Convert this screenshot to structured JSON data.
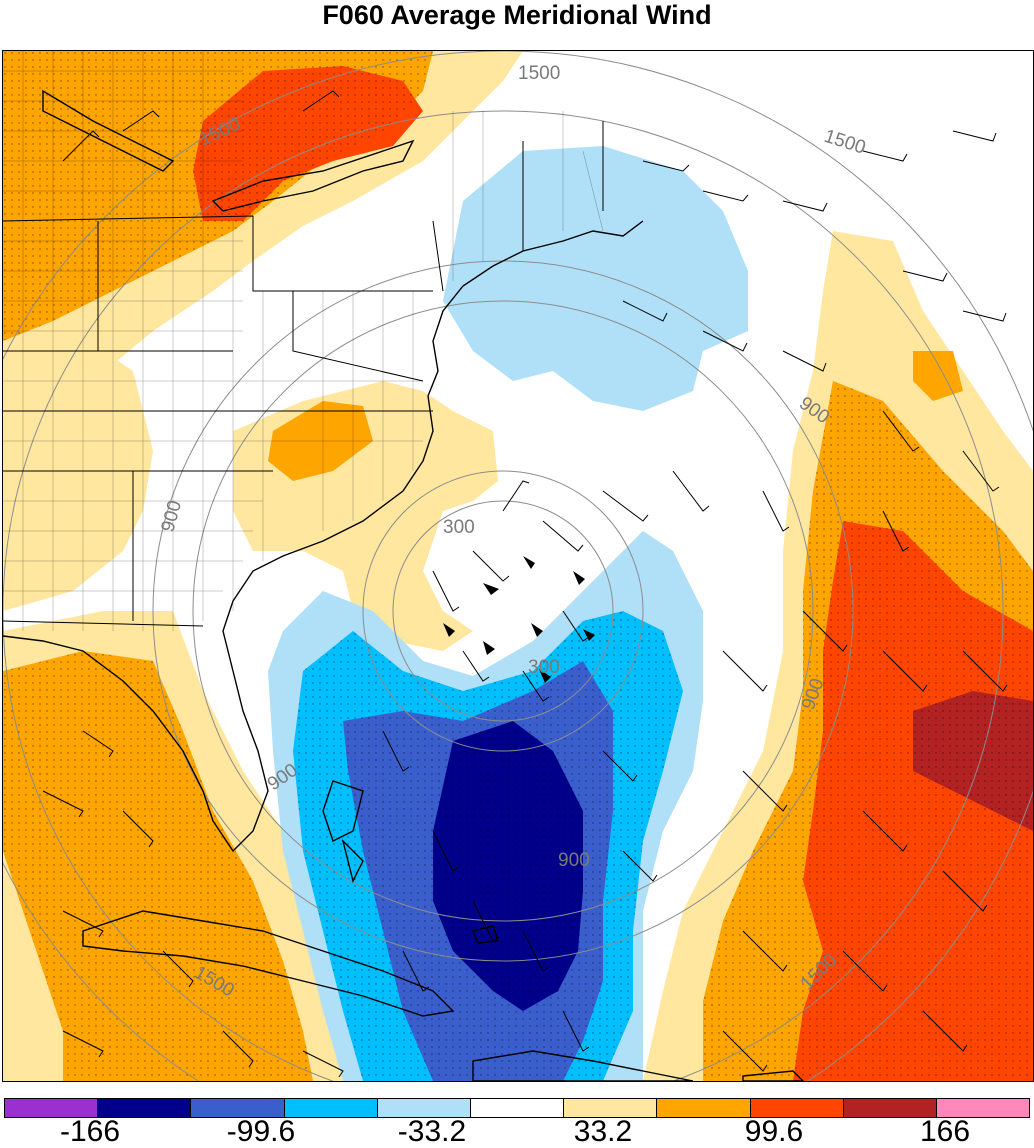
{
  "title": "F060 Average Meridional Wind",
  "contour_labels": {
    "c300a": "300",
    "c300b": "300",
    "c900a": "900",
    "c900b": "900",
    "c900c": "900",
    "c900d": "900",
    "c900e": "900",
    "c1500a": "1500",
    "c1500b": "1500",
    "c1500c": "1500",
    "c1500d": "1500",
    "c1500e": "1500"
  },
  "colorbar": {
    "labels": [
      "-166",
      "-99.6",
      "-33.2",
      "33.2",
      "99.6",
      "166"
    ],
    "colors": [
      "#9b30d0",
      "#00008b",
      "#3a5fcd",
      "#00bfff",
      "#b0e0f8",
      "#ffffff",
      "#ffe7a0",
      "#ffa500",
      "#ff4500",
      "#b22222",
      "#ff88bb"
    ]
  },
  "colors": {
    "orange": "#ffa500",
    "red_orange": "#ff4500",
    "dark_red": "#b22222",
    "pale_yellow": "#ffe7a0",
    "light_blue": "#b0e0f8",
    "deep_sky_blue": "#00bfff",
    "royal_blue": "#3a5fcd",
    "navy": "#00008b"
  }
}
